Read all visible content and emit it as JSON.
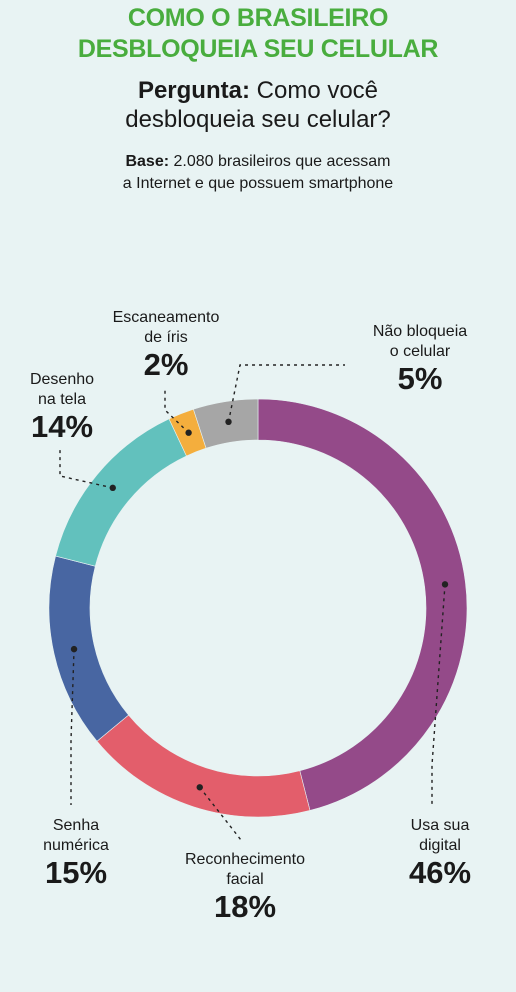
{
  "header": {
    "title_line1": "COMO O BRASILEIRO",
    "title_line2": "DESBLOQUEIA SEU CELULAR",
    "question_label": "Pergunta:",
    "question_line1": "Como você",
    "question_line2": "desbloqueia seu celular?",
    "base_label": "Base:",
    "base_line1": "2.080 brasileiros que acessam",
    "base_line2": "a Internet e que possuem smartphone"
  },
  "colors": {
    "background": "#e8f3f3",
    "title": "#49ad3e"
  },
  "chart_data": {
    "type": "pie",
    "variant": "donut",
    "unit": "%",
    "slices": [
      {
        "label_line1": "Usa sua",
        "label_line2": "digital",
        "value": 46,
        "pct": "46%",
        "color": "#944a89"
      },
      {
        "label_line1": "Reconhecimento",
        "label_line2": "facial",
        "value": 18,
        "pct": "18%",
        "color": "#e35e6b"
      },
      {
        "label_line1": "Senha",
        "label_line2": "numérica",
        "value": 15,
        "pct": "15%",
        "color": "#4866a2"
      },
      {
        "label_line1": "Desenho",
        "label_line2": "na tela",
        "value": 14,
        "pct": "14%",
        "color": "#62c1bd"
      },
      {
        "label_line1": "Escaneamento",
        "label_line2": "de íris",
        "value": 2,
        "pct": "2%",
        "color": "#f4ae3d"
      },
      {
        "label_line1": "Não bloqueia",
        "label_line2": "o celular",
        "value": 5,
        "pct": "5%",
        "color": "#a6a6a6"
      }
    ]
  }
}
